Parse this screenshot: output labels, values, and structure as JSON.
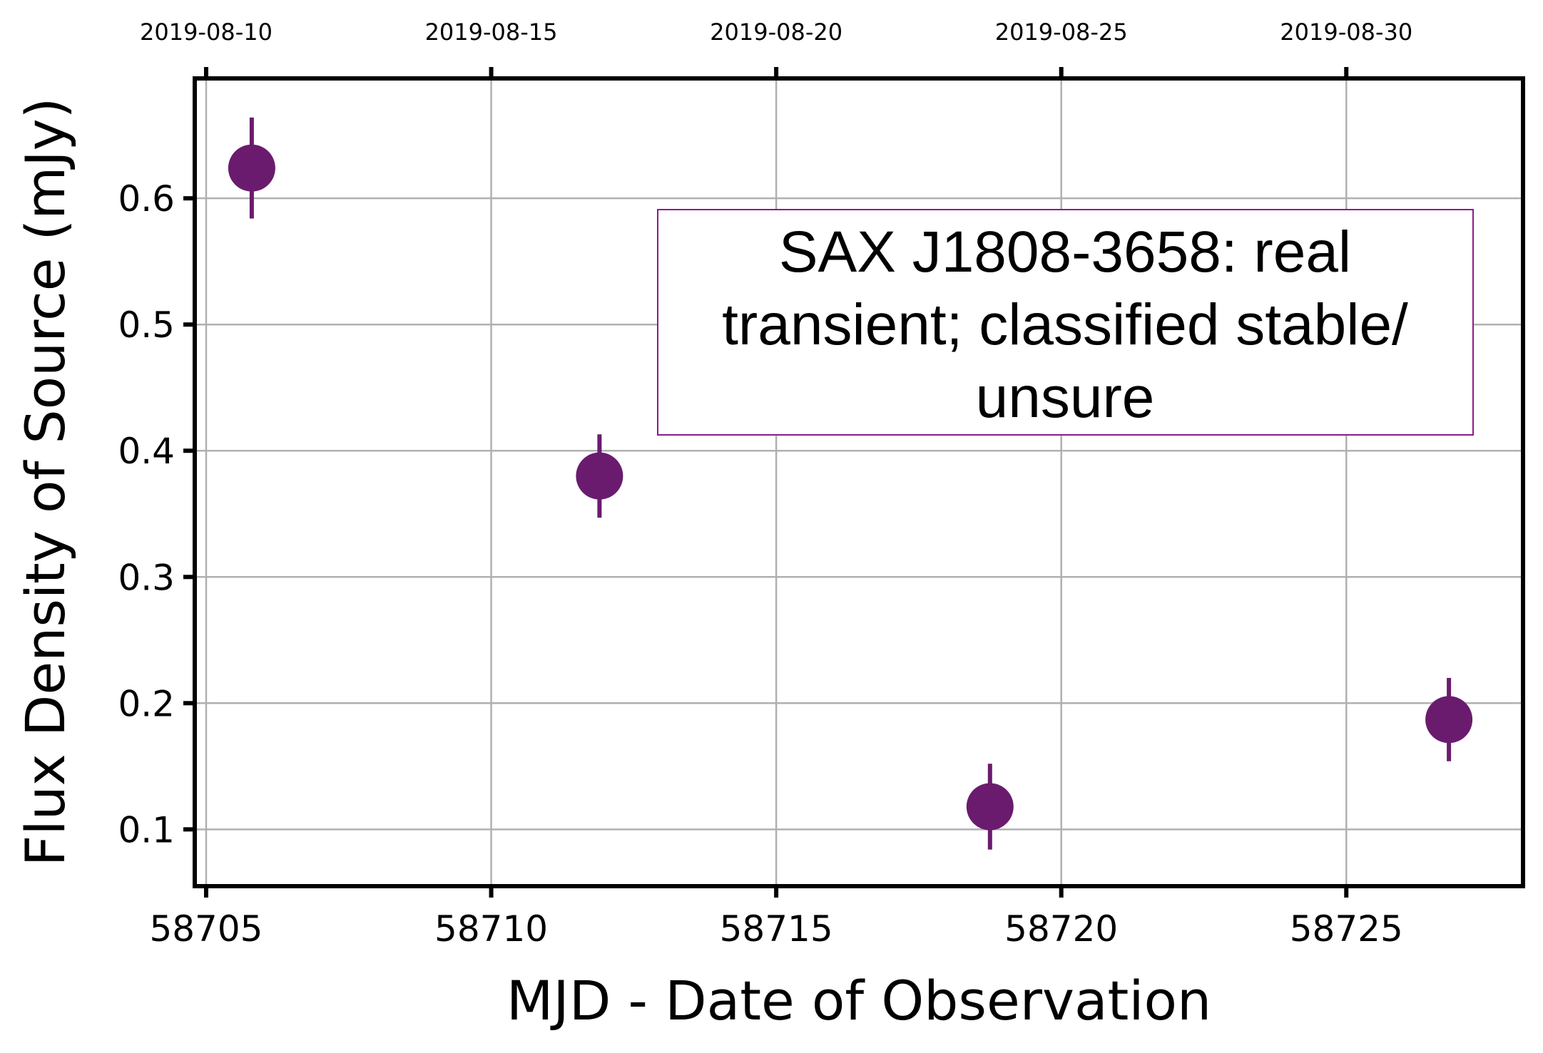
{
  "chart_data": {
    "type": "scatter",
    "title": "",
    "xlabel": "MJD - Date of Observation",
    "ylabel": "Flux Density of Source (mJy)",
    "xlim": [
      58704.8,
      58728.1
    ],
    "ylim": [
      0.055,
      0.695
    ],
    "x_ticks": [
      58705,
      58710,
      58715,
      58720,
      58725
    ],
    "x_tick_labels": [
      "58705",
      "58710",
      "58715",
      "58720",
      "58725"
    ],
    "y_ticks": [
      0.1,
      0.2,
      0.3,
      0.4,
      0.5,
      0.6
    ],
    "y_tick_labels": [
      "0.1",
      "0.2",
      "0.3",
      "0.4",
      "0.5",
      "0.6"
    ],
    "top_axis": {
      "ticks": [
        58705,
        58710,
        58715,
        58720,
        58725
      ],
      "labels": [
        "2019-08-10",
        "2019-08-15",
        "2019-08-20",
        "2019-08-25",
        "2019-08-30"
      ]
    },
    "grid": true,
    "series": [
      {
        "color": "#6a1b6e",
        "points": [
          {
            "x": 58705.8,
            "y": 0.624,
            "yerr": 0.04
          },
          {
            "x": 58711.9,
            "y": 0.38,
            "yerr": 0.033
          },
          {
            "x": 58718.75,
            "y": 0.118,
            "yerr": 0.034
          },
          {
            "x": 58726.8,
            "y": 0.187,
            "yerr": 0.033
          }
        ]
      }
    ],
    "annotation": {
      "lines": [
        "SAX J1808-3658: real",
        "transient; classified stable/",
        "unsure"
      ],
      "border_color": "#8b1a8b"
    }
  }
}
